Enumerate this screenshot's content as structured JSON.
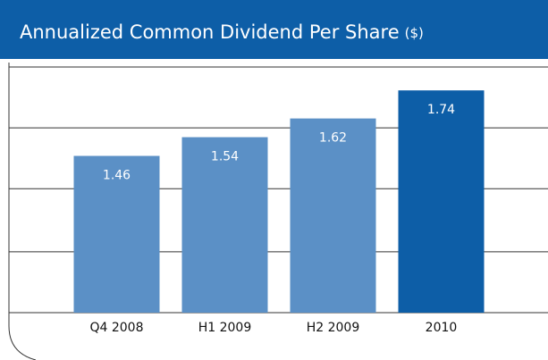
{
  "chart_data": {
    "type": "bar",
    "title": "Annualized Common Dividend Per Share",
    "unit": "($)",
    "categories": [
      "Q4 2008",
      "H1 2009",
      "H2 2009",
      "2010"
    ],
    "values": [
      1.46,
      1.54,
      1.62,
      1.74
    ],
    "colors": [
      "#5b90c6",
      "#5b90c6",
      "#5b90c6",
      "#0d5ea7"
    ],
    "ylim": [
      0.79,
      1.84
    ],
    "yticks": [
      0.79,
      1.05,
      1.32,
      1.58,
      1.84
    ],
    "grid": true
  }
}
